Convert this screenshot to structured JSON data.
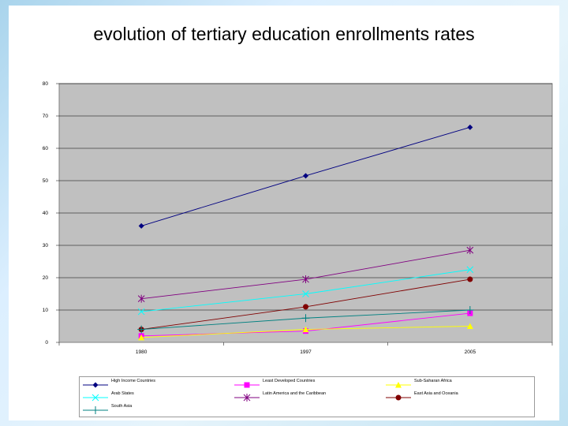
{
  "chart_data": {
    "type": "line",
    "title": "evolution of tertiary education enrollments rates",
    "categories": [
      "1980",
      "1997",
      "2005"
    ],
    "ylim": [
      0,
      80
    ],
    "yticks": [
      0,
      10,
      20,
      30,
      40,
      50,
      60,
      70,
      80
    ],
    "grid": true,
    "legend_position": "bottom",
    "series": [
      {
        "name": "High Income Countries",
        "values": [
          36,
          51.5,
          66.5
        ],
        "color": "#000080",
        "marker": "diamond"
      },
      {
        "name": "Least Developed Countries",
        "values": [
          2,
          3.5,
          9
        ],
        "color": "#ff00ff",
        "marker": "square"
      },
      {
        "name": "Sub-Saharan Africa",
        "values": [
          1.5,
          4,
          5
        ],
        "color": "#ffff00",
        "marker": "triangle"
      },
      {
        "name": "Arab States",
        "values": [
          9.5,
          15,
          22.5
        ],
        "color": "#00ffff",
        "marker": "x"
      },
      {
        "name": "Latin America and the Caribbean",
        "values": [
          13.5,
          19.5,
          28.5
        ],
        "color": "#800080",
        "marker": "star"
      },
      {
        "name": "East Asia and Oceania",
        "values": [
          4,
          11,
          19.5
        ],
        "color": "#800000",
        "marker": "circle"
      },
      {
        "name": "South Asia",
        "values": [
          4,
          7.5,
          10
        ],
        "color": "#008080",
        "marker": "plus"
      }
    ]
  }
}
